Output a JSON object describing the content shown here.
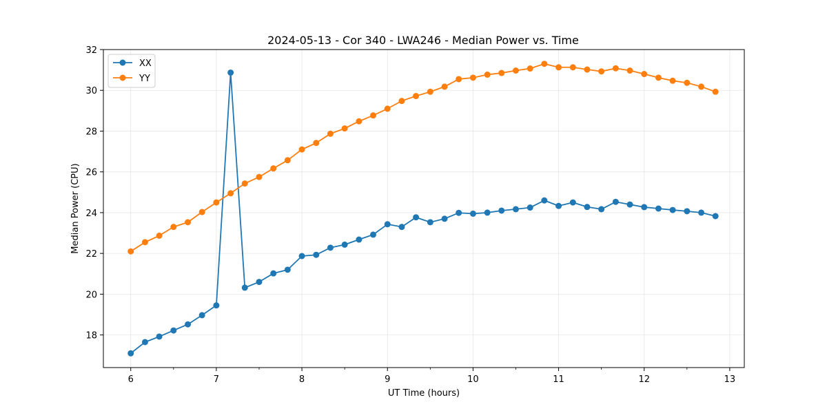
{
  "chart_data": {
    "type": "line",
    "title": "2024-05-13 - Cor 340 - LWA246 - Median Power vs. Time",
    "xlabel": "UT Time (hours)",
    "ylabel": "Median Power (CPU)",
    "xlim": [
      5.68,
      13.17
    ],
    "ylim": [
      16.4,
      32
    ],
    "xticks": [
      6,
      7,
      8,
      9,
      10,
      11,
      12,
      13
    ],
    "yticks": [
      18,
      20,
      22,
      24,
      26,
      28,
      30,
      32
    ],
    "x_minor_step": 0.5,
    "grid": true,
    "legend_position": "upper-left",
    "x": [
      6.0,
      6.167,
      6.333,
      6.5,
      6.667,
      6.833,
      7.0,
      7.167,
      7.333,
      7.5,
      7.667,
      7.833,
      8.0,
      8.167,
      8.333,
      8.5,
      8.667,
      8.833,
      9.0,
      9.167,
      9.333,
      9.5,
      9.667,
      9.833,
      10.0,
      10.167,
      10.333,
      10.5,
      10.667,
      10.833,
      11.0,
      11.167,
      11.333,
      11.5,
      11.667,
      11.833,
      12.0,
      12.167,
      12.333,
      12.5,
      12.667,
      12.833
    ],
    "series": [
      {
        "name": "XX",
        "color": "#1f77b4",
        "values": [
          17.1,
          17.65,
          17.92,
          18.22,
          18.52,
          18.97,
          19.45,
          30.87,
          20.32,
          20.6,
          21.02,
          21.2,
          21.87,
          21.93,
          22.28,
          22.43,
          22.68,
          22.92,
          23.43,
          23.3,
          23.77,
          23.53,
          23.7,
          23.99,
          23.95,
          24.0,
          24.1,
          24.17,
          24.25,
          24.6,
          24.33,
          24.5,
          24.28,
          24.17,
          24.53,
          24.4,
          24.27,
          24.2,
          24.13,
          24.07,
          24.0,
          23.83
        ]
      },
      {
        "name": "YY",
        "color": "#ff7f0e",
        "values": [
          22.1,
          22.55,
          22.87,
          23.3,
          23.53,
          24.03,
          24.5,
          24.95,
          25.43,
          25.75,
          26.17,
          26.57,
          27.1,
          27.42,
          27.87,
          28.13,
          28.48,
          28.77,
          29.1,
          29.48,
          29.72,
          29.93,
          30.18,
          30.55,
          30.62,
          30.77,
          30.85,
          30.97,
          31.07,
          31.3,
          31.13,
          31.13,
          31.02,
          30.93,
          31.08,
          30.97,
          30.8,
          30.62,
          30.47,
          30.37,
          30.18,
          29.93
        ]
      }
    ]
  }
}
